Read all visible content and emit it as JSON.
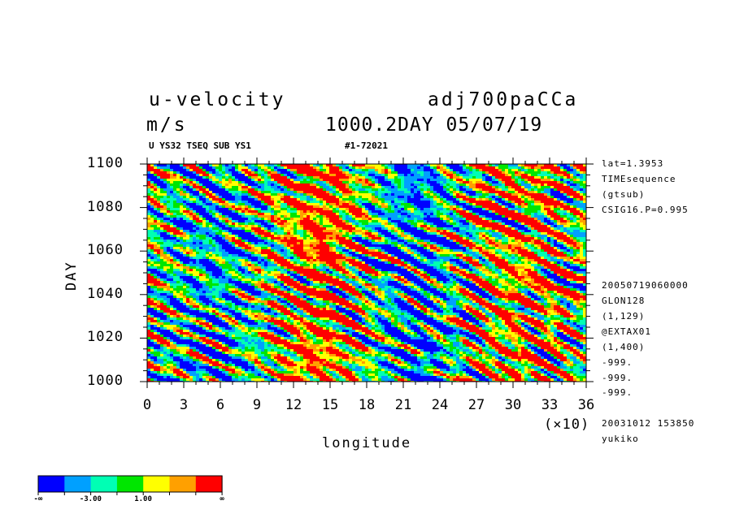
{
  "header": {
    "title": "u-velocity",
    "units": "m/s",
    "run_name": "adj700paCCa",
    "run_time": "1000.2DAY 05/07/19",
    "subtitle_left": "U YS32 TSEQ SUB YS1",
    "subtitle_right": "#1-72021"
  },
  "meta": [
    "lat=1.3953",
    "TIMEsequence",
    "(gtsub)",
    "CSIG16.P=0.995",
    "20050719060000",
    "GLON128",
    "(1,129)",
    "@EXTAX01",
    "(1,400)",
    "-999.",
    "-999.",
    "-999.",
    "20031012 153850",
    "yukiko"
  ],
  "colors": {
    "levels": [
      "#0000ff",
      "#00a0ff",
      "#00ffb4",
      "#00e600",
      "#ffff00",
      "#ffa000",
      "#ff0000"
    ]
  },
  "colorbar": {
    "labels": [
      "-∞",
      "-3.00",
      "1.00",
      "∞"
    ]
  },
  "chart_data": {
    "type": "heatmap",
    "title": "u-velocity",
    "xlabel": "longitude",
    "ylabel": "DAY",
    "x_multiplier": "(×10)",
    "xlim": [
      0,
      36
    ],
    "ylim": [
      1000,
      1100
    ],
    "x_ticks": [
      0,
      3,
      6,
      9,
      12,
      15,
      18,
      21,
      24,
      27,
      30,
      33,
      36
    ],
    "y_ticks": [
      1000,
      1020,
      1040,
      1060,
      1080,
      1100
    ],
    "x_tick_labels": [
      "0",
      "3",
      "6",
      "9",
      "12",
      "15",
      "18",
      "21",
      "24",
      "27",
      "30",
      "33",
      "36"
    ],
    "y_tick_labels": [
      "1000",
      "1020",
      "1040",
      "1060",
      "1080",
      "1100"
    ],
    "levels": [
      "-∞",
      "",
      "-3.00",
      "",
      "1.00",
      "",
      "",
      "∞"
    ],
    "bands_by_longitude": [
      {
        "lon_range": [
          0,
          3
        ],
        "dominant": "mixed cyan/green/yellow"
      },
      {
        "lon_range": [
          3,
          10
        ],
        "dominant": "blue/cyan (negative)"
      },
      {
        "lon_range": [
          10,
          13
        ],
        "dominant": "green/yellow"
      },
      {
        "lon_range": [
          13,
          20
        ],
        "dominant": "red/orange (positive)"
      },
      {
        "lon_range": [
          20,
          27
        ],
        "dominant": "blue/cyan (negative)"
      },
      {
        "lon_range": [
          27,
          30
        ],
        "dominant": "green/yellow"
      },
      {
        "lon_range": [
          30,
          36
        ],
        "dominant": "red/orange (positive)"
      }
    ]
  }
}
